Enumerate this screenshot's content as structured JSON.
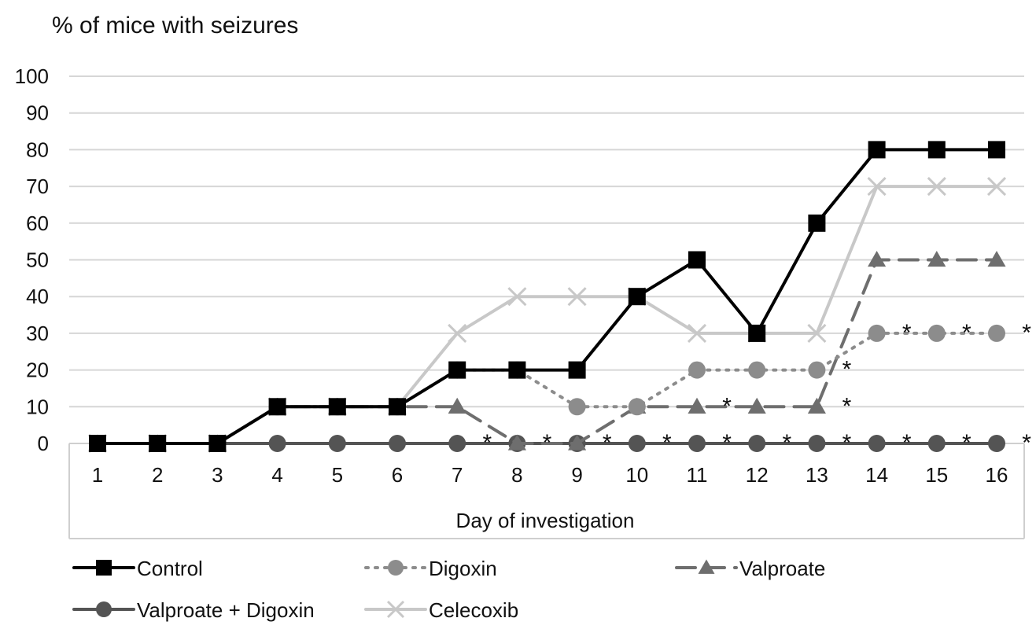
{
  "chart_data": {
    "type": "line",
    "title": "",
    "ylabel": "% of mice with seizures",
    "xlabel": "Day of investigation",
    "x": [
      1,
      2,
      3,
      4,
      5,
      6,
      7,
      8,
      9,
      10,
      11,
      12,
      13,
      14,
      15,
      16
    ],
    "ylim": [
      0,
      100
    ],
    "yticks": [
      0,
      10,
      20,
      30,
      40,
      50,
      60,
      70,
      80,
      90,
      100
    ],
    "grid": true,
    "legend_position": "bottom",
    "series": [
      {
        "name": "Control",
        "color": "#000000",
        "dash": "solid",
        "marker": "square",
        "values": [
          0,
          0,
          0,
          10,
          10,
          10,
          20,
          20,
          20,
          40,
          50,
          30,
          60,
          80,
          80,
          80
        ]
      },
      {
        "name": "Digoxin",
        "color": "#8c8c8c",
        "dash": "dotted",
        "marker": "circle",
        "values": [
          0,
          0,
          0,
          10,
          10,
          10,
          20,
          20,
          10,
          10,
          20,
          20,
          20,
          30,
          30,
          30
        ]
      },
      {
        "name": "Valproate",
        "color": "#6e6e6e",
        "dash": "dashed",
        "marker": "triangle",
        "values": [
          0,
          0,
          0,
          10,
          10,
          10,
          10,
          0,
          0,
          10,
          10,
          10,
          10,
          50,
          50,
          50
        ]
      },
      {
        "name": "Valproate + Digoxin",
        "color": "#545454",
        "dash": "solid",
        "marker": "circle",
        "values": [
          0,
          0,
          0,
          0,
          0,
          0,
          0,
          0,
          0,
          0,
          0,
          0,
          0,
          0,
          0,
          0
        ]
      },
      {
        "name": "Celecoxib",
        "color": "#c8c8c8",
        "dash": "solid",
        "marker": "x",
        "values": [
          0,
          0,
          0,
          10,
          10,
          10,
          30,
          40,
          40,
          40,
          30,
          30,
          30,
          70,
          70,
          70
        ]
      }
    ],
    "annotations": [
      {
        "text": "*",
        "x": 7.5,
        "y": 0
      },
      {
        "text": "*",
        "x": 8.5,
        "y": 0
      },
      {
        "text": "*",
        "x": 9.5,
        "y": 0
      },
      {
        "text": "*",
        "x": 10.5,
        "y": 0
      },
      {
        "text": "*",
        "x": 11.5,
        "y": 0
      },
      {
        "text": "*",
        "x": 12.5,
        "y": 0
      },
      {
        "text": "*",
        "x": 13.5,
        "y": 0
      },
      {
        "text": "*",
        "x": 14.5,
        "y": 0
      },
      {
        "text": "*",
        "x": 15.5,
        "y": 0
      },
      {
        "text": "*",
        "x": 16.5,
        "y": 0
      },
      {
        "text": "*",
        "x": 11.5,
        "y": 10
      },
      {
        "text": "*",
        "x": 13.5,
        "y": 10
      },
      {
        "text": "*",
        "x": 13.5,
        "y": 20
      },
      {
        "text": "*",
        "x": 14.5,
        "y": 30
      },
      {
        "text": "*",
        "x": 15.5,
        "y": 30
      },
      {
        "text": "*",
        "x": 16.5,
        "y": 30
      }
    ]
  }
}
